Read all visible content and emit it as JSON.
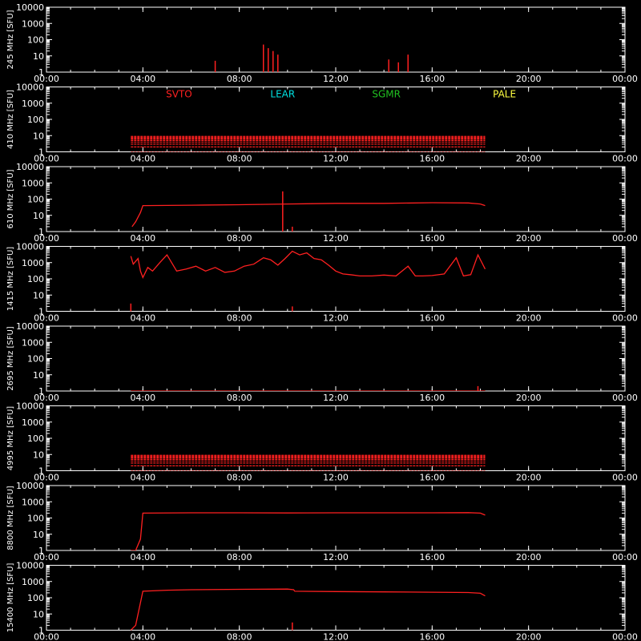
{
  "figure": {
    "background": "#000000",
    "axis_color": "#ffffff",
    "trace_color": "#ff2020",
    "y_unit": "[SFU]"
  },
  "legend": [
    {
      "label": "SVTO",
      "color": "#ff2020"
    },
    {
      "label": "LEAR",
      "color": "#00e0e0"
    },
    {
      "label": "SGMR",
      "color": "#20c020"
    },
    {
      "label": "PALE",
      "color": "#ffff40"
    }
  ],
  "chart_data": [
    {
      "type": "line",
      "label": "245 MHz",
      "ylabel": "245 MHz [SFU]",
      "x_unit": "hour UT",
      "xlim": [
        0,
        24
      ],
      "yscale": "log",
      "ylim": [
        1,
        10000
      ],
      "xticks": [
        "00:00",
        "04:00",
        "08:00",
        "12:00",
        "16:00",
        "20:00",
        "00:00"
      ],
      "yticks": [
        "1",
        "10",
        "100",
        "1000",
        "10000"
      ],
      "series": [
        {
          "kind": "spikes",
          "x": [
            7.0,
            9.0,
            9.2,
            9.4,
            9.6,
            14.2,
            14.6,
            15.0
          ],
          "y": [
            5,
            50,
            30,
            20,
            12,
            6,
            4,
            12
          ]
        }
      ]
    },
    {
      "type": "line",
      "label": "410 MHz",
      "ylabel": "410 MHz [SFU]",
      "x_unit": "hour UT",
      "xlim": [
        0,
        24
      ],
      "yscale": "log",
      "ylim": [
        1,
        10000
      ],
      "xticks": [
        "00:00",
        "04:00",
        "08:00",
        "12:00",
        "16:00",
        "20:00",
        "00:00"
      ],
      "yticks": [
        "1",
        "10",
        "100",
        "1000",
        "10000"
      ],
      "series": [
        {
          "kind": "band",
          "x_start": 3.5,
          "x_end": 18.2,
          "y_low": 1,
          "y_high": 9
        }
      ]
    },
    {
      "type": "line",
      "label": "610 MHz",
      "ylabel": "610 MHz [SFU]",
      "x_unit": "hour UT",
      "xlim": [
        0,
        24
      ],
      "yscale": "log",
      "ylim": [
        1,
        10000
      ],
      "xticks": [
        "00:00",
        "04:00",
        "08:00",
        "12:00",
        "16:00",
        "20:00",
        "00:00"
      ],
      "yticks": [
        "1",
        "10",
        "100",
        "1000",
        "10000"
      ],
      "series": [
        {
          "kind": "line",
          "x": [
            3.55,
            3.7,
            3.9,
            4.0,
            6.0,
            8.0,
            10.0,
            12.0,
            14.0,
            16.0,
            17.5,
            18.0,
            18.2
          ],
          "y": [
            2,
            4,
            15,
            40,
            42,
            45,
            50,
            55,
            55,
            60,
            58,
            50,
            40
          ]
        },
        {
          "kind": "spikes",
          "x": [
            10.2,
            9.8
          ],
          "y": [
            2,
            300
          ]
        }
      ]
    },
    {
      "type": "line",
      "label": "1415 MHz",
      "ylabel": "1415 MHz [SFU]",
      "x_unit": "hour UT",
      "xlim": [
        0,
        24
      ],
      "yscale": "log",
      "ylim": [
        1,
        10000
      ],
      "xticks": [
        "00:00",
        "04:00",
        "08:00",
        "12:00",
        "16:00",
        "20:00",
        "00:00"
      ],
      "yticks": [
        "1",
        "10",
        "100",
        "1000",
        "10000"
      ],
      "series": [
        {
          "kind": "line",
          "x": [
            3.5,
            3.6,
            3.8,
            3.9,
            4.0,
            4.2,
            4.4,
            4.7,
            5.0,
            5.4,
            5.8,
            6.2,
            6.6,
            7.0,
            7.4,
            7.8,
            8.2,
            8.6,
            9.0,
            9.3,
            9.6,
            9.9,
            10.2,
            10.5,
            10.8,
            11.1,
            11.4,
            11.7,
            12.0,
            12.3,
            12.6,
            13.0,
            13.5,
            14.0,
            14.5,
            15.0,
            15.3,
            15.6,
            16.0,
            16.5,
            17.0,
            17.3,
            17.6,
            17.9,
            18.2
          ],
          "y": [
            2500,
            800,
            1800,
            300,
            120,
            500,
            300,
            1000,
            3000,
            300,
            400,
            600,
            300,
            500,
            250,
            300,
            600,
            800,
            2000,
            1500,
            700,
            1800,
            5000,
            3000,
            4000,
            1800,
            1500,
            700,
            300,
            200,
            180,
            150,
            150,
            170,
            150,
            600,
            150,
            150,
            160,
            200,
            2000,
            150,
            180,
            3000,
            400
          ]
        },
        {
          "kind": "spikes",
          "x": [
            3.5,
            10.2
          ],
          "y": [
            3,
            2
          ]
        }
      ]
    },
    {
      "type": "line",
      "label": "2695 MHz",
      "ylabel": "2695 MHz [SFU]",
      "x_unit": "hour UT",
      "xlim": [
        0,
        24
      ],
      "yscale": "log",
      "ylim": [
        1,
        10000
      ],
      "xticks": [
        "00:00",
        "04:00",
        "08:00",
        "12:00",
        "16:00",
        "20:00",
        "00:00"
      ],
      "yticks": [
        "1",
        "10",
        "100",
        "1000",
        "10000"
      ],
      "series": [
        {
          "kind": "line",
          "x": [
            3.5,
            18.2
          ],
          "y": [
            1,
            1
          ]
        },
        {
          "kind": "spikes",
          "x": [
            17.9
          ],
          "y": [
            2
          ]
        }
      ]
    },
    {
      "type": "line",
      "label": "4995 MHz",
      "ylabel": "4995 MHz [SFU]",
      "x_unit": "hour UT",
      "xlim": [
        0,
        24
      ],
      "yscale": "log",
      "ylim": [
        1,
        10000
      ],
      "xticks": [
        "00:00",
        "04:00",
        "08:00",
        "12:00",
        "16:00",
        "20:00",
        "00:00"
      ],
      "yticks": [
        "1",
        "10",
        "100",
        "1000",
        "10000"
      ],
      "series": [
        {
          "kind": "band",
          "x_start": 3.5,
          "x_end": 18.2,
          "y_low": 1,
          "y_high": 9
        }
      ]
    },
    {
      "type": "line",
      "label": "8800 MHz",
      "ylabel": "8800 MHz [SFU]",
      "x_unit": "hour UT",
      "xlim": [
        0,
        24
      ],
      "yscale": "log",
      "ylim": [
        1,
        10000
      ],
      "xticks": [
        "00:00",
        "04:00",
        "08:00",
        "12:00",
        "16:00",
        "20:00",
        "00:00"
      ],
      "yticks": [
        "1",
        "10",
        "100",
        "1000",
        "10000"
      ],
      "series": [
        {
          "kind": "line",
          "x": [
            3.5,
            3.7,
            3.9,
            4.0,
            6.0,
            8.0,
            10.0,
            12.0,
            14.0,
            16.0,
            17.5,
            18.0,
            18.2
          ],
          "y": [
            1,
            1,
            5,
            200,
            210,
            210,
            205,
            210,
            210,
            210,
            215,
            200,
            150
          ]
        },
        {
          "kind": "spikes",
          "x": [
            10.2
          ],
          "y": [
            1
          ]
        }
      ]
    },
    {
      "type": "line",
      "label": "15400 MHz",
      "ylabel": "15400 MHz [SFU]",
      "x_unit": "hour UT",
      "xlim": [
        0,
        24
      ],
      "yscale": "log",
      "ylim": [
        1,
        10000
      ],
      "xticks": [
        "00:00",
        "04:00",
        "08:00",
        "12:00",
        "16:00",
        "20:00",
        "00:00"
      ],
      "yticks": [
        "1",
        "10",
        "100",
        "1000",
        "10000"
      ],
      "series": [
        {
          "kind": "line",
          "x": [
            3.5,
            3.7,
            3.9,
            4.0,
            5.0,
            6.0,
            8.0,
            10.0,
            10.25,
            10.3,
            12.0,
            14.0,
            16.0,
            17.5,
            18.0,
            18.2
          ],
          "y": [
            1,
            2,
            50,
            250,
            290,
            310,
            330,
            340,
            310,
            250,
            240,
            230,
            220,
            210,
            190,
            130
          ]
        },
        {
          "kind": "spikes",
          "x": [
            3.5,
            10.2
          ],
          "y": [
            1,
            3
          ]
        }
      ]
    }
  ]
}
